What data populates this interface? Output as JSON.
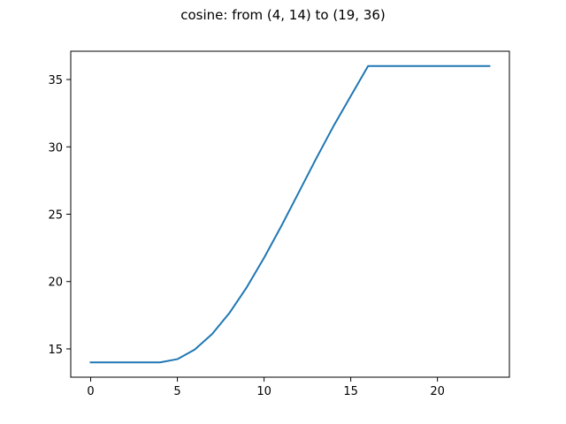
{
  "chart_data": {
    "type": "line",
    "title": "cosine: from (4, 14) to (19, 36)",
    "xlabel": "",
    "ylabel": "",
    "xlim": [
      -1.15,
      24.15
    ],
    "ylim": [
      12.9,
      37.1
    ],
    "xticks": [
      0,
      5,
      10,
      15,
      20
    ],
    "yticks": [
      15,
      20,
      25,
      30,
      35
    ],
    "grid": false,
    "series": [
      {
        "color": "#1f77b4",
        "x": [
          0,
          1,
          2,
          3,
          4,
          5,
          6,
          7,
          8,
          9,
          10,
          11,
          12,
          13,
          14,
          15,
          16,
          17,
          18,
          19,
          20,
          21,
          22,
          23
        ],
        "y": [
          14,
          14,
          14,
          14,
          14,
          14.24,
          14.95,
          16.1,
          17.66,
          19.57,
          21.76,
          24.13,
          26.62,
          29.12,
          31.53,
          33.77,
          36,
          36,
          36,
          36,
          36,
          36,
          36,
          36
        ]
      }
    ]
  }
}
